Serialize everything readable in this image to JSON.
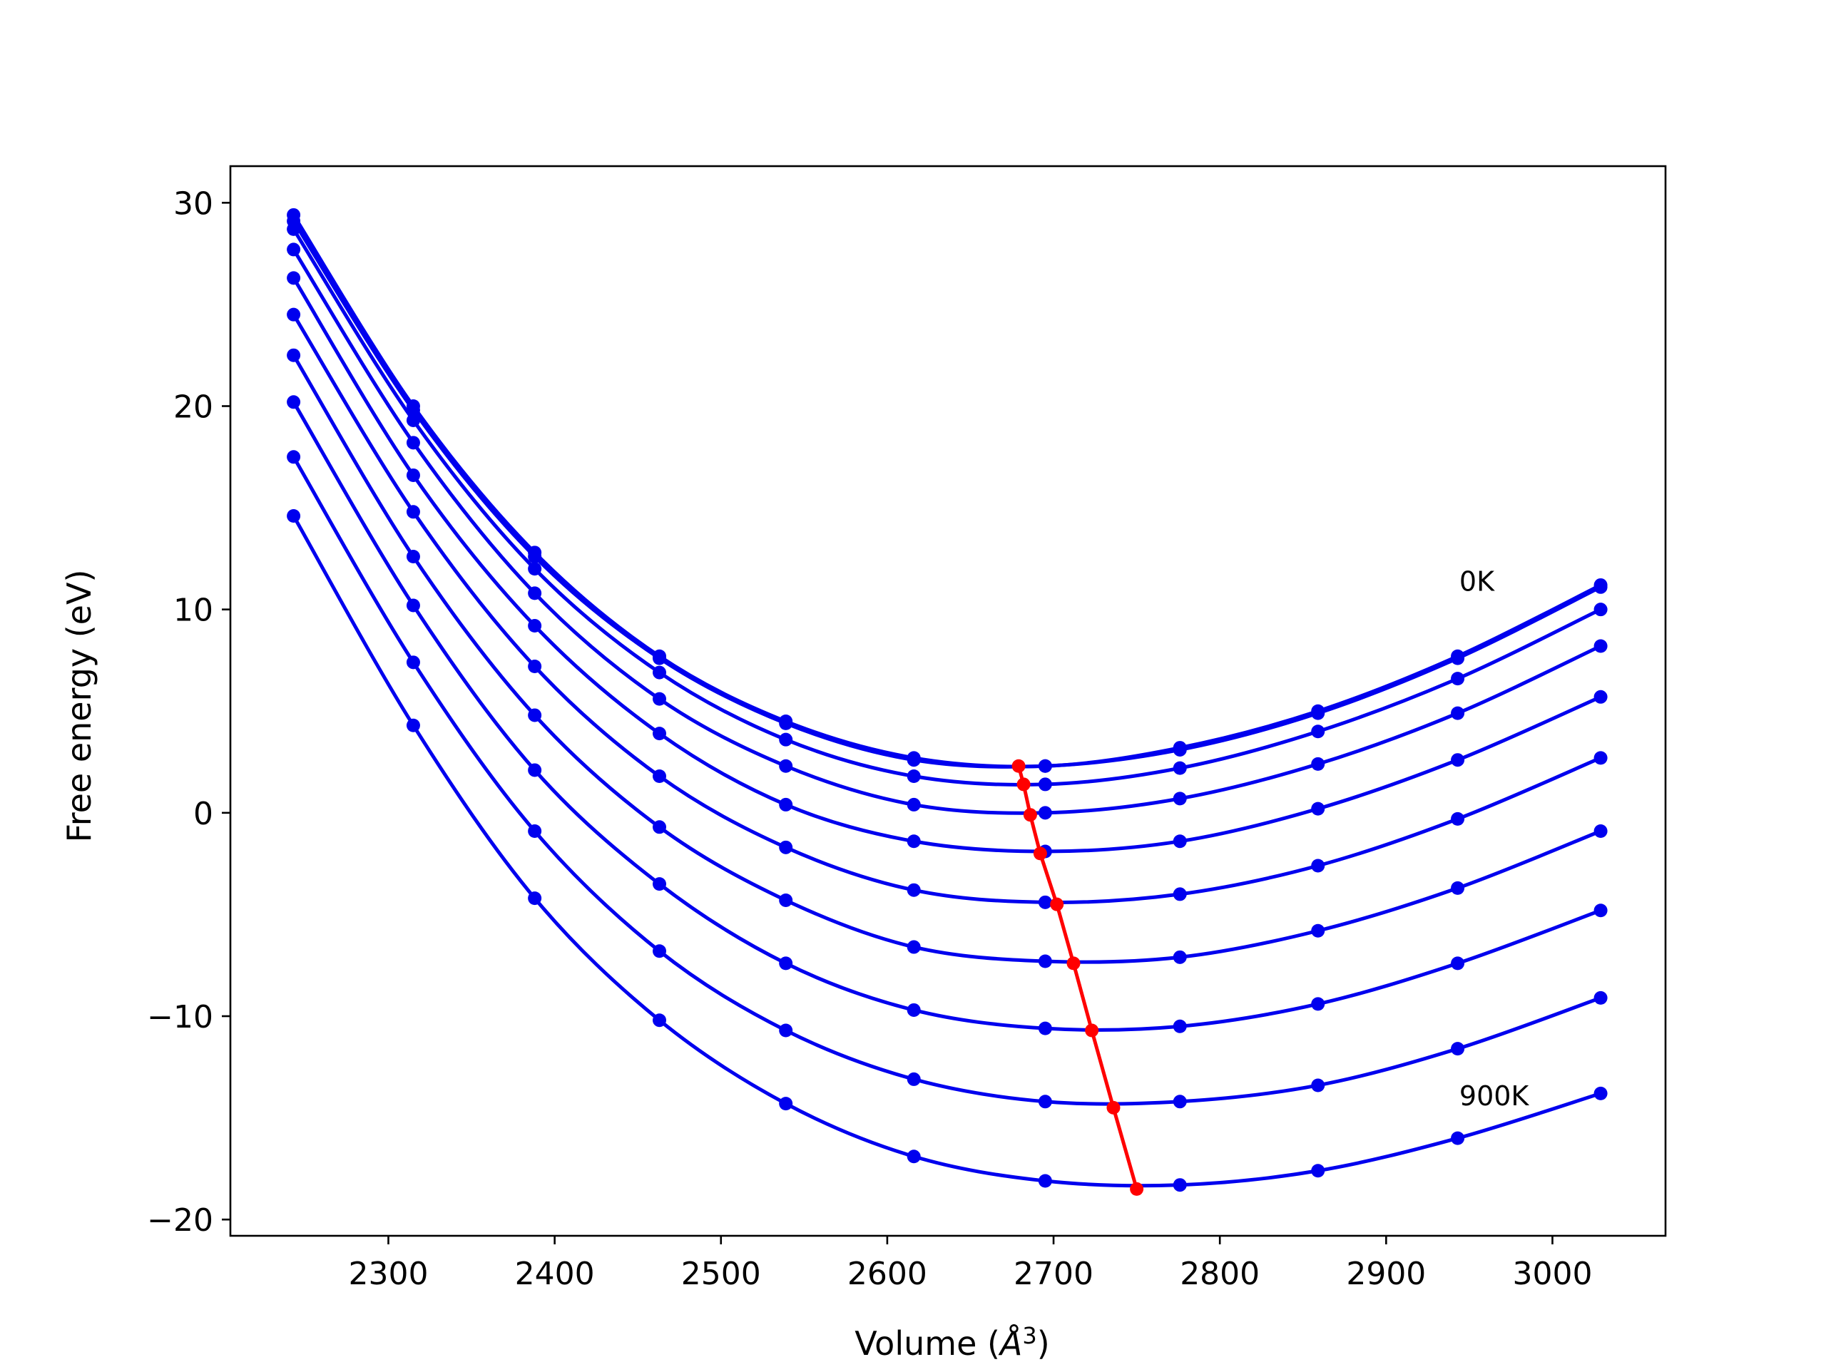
{
  "chart_data": {
    "type": "line",
    "title": "",
    "xlabel_main": "Volume (",
    "xlabel_unit": "Å",
    "xlabel_sup": "3",
    "xlabel_close": ")",
    "ylabel": "Free energy (eV)",
    "xlim": [
      2205,
      3068
    ],
    "ylim": [
      -20.8,
      31.8
    ],
    "xticks": [
      2300,
      2400,
      2500,
      2600,
      2700,
      2800,
      2900,
      3000
    ],
    "yticks": [
      -20,
      -10,
      0,
      10,
      20,
      30
    ],
    "xtick_labels": [
      "2300",
      "2400",
      "2500",
      "2600",
      "2700",
      "2800",
      "2900",
      "3000"
    ],
    "ytick_labels": [
      "−20",
      "−10",
      "0",
      "10",
      "20",
      "30"
    ],
    "annotations": [
      {
        "text": "0K",
        "x": 2944,
        "y": 11.4
      },
      {
        "text": "900K",
        "x": 2944,
        "y": -13.9
      }
    ],
    "x": [
      2243,
      2315,
      2388,
      2463,
      2539,
      2616,
      2695,
      2776,
      2859,
      2943,
      3029
    ],
    "series": [
      {
        "color": "#0000ee",
        "values": [
          29.4,
          20.0,
          12.8,
          7.7,
          4.5,
          2.7,
          2.3,
          3.2,
          5.0,
          7.7,
          11.2
        ]
      },
      {
        "color": "#0000ee",
        "values": [
          29.1,
          19.8,
          12.6,
          7.6,
          4.4,
          2.6,
          2.3,
          3.1,
          4.9,
          7.6,
          11.1
        ]
      },
      {
        "color": "#0000ee",
        "values": [
          28.7,
          19.3,
          12.0,
          6.9,
          3.6,
          1.8,
          1.4,
          2.2,
          4.0,
          6.6,
          10.0
        ]
      },
      {
        "color": "#0000ee",
        "values": [
          27.7,
          18.2,
          10.8,
          5.6,
          2.3,
          0.4,
          0.0,
          0.7,
          2.4,
          4.9,
          8.2
        ]
      },
      {
        "color": "#0000ee",
        "values": [
          26.3,
          16.6,
          9.2,
          3.9,
          0.4,
          -1.4,
          -1.9,
          -1.4,
          0.2,
          2.6,
          5.7
        ]
      },
      {
        "color": "#0000ee",
        "values": [
          24.5,
          14.8,
          7.2,
          1.8,
          -1.7,
          -3.8,
          -4.4,
          -4.0,
          -2.6,
          -0.3,
          2.7
        ]
      },
      {
        "color": "#0000ee",
        "values": [
          22.5,
          12.6,
          4.8,
          -0.7,
          -4.3,
          -6.6,
          -7.3,
          -7.1,
          -5.8,
          -3.7,
          -0.9
        ]
      },
      {
        "color": "#0000ee",
        "values": [
          20.2,
          10.2,
          2.1,
          -3.5,
          -7.4,
          -9.7,
          -10.6,
          -10.5,
          -9.4,
          -7.4,
          -4.8
        ]
      },
      {
        "color": "#0000ee",
        "values": [
          17.5,
          7.4,
          -0.9,
          -6.8,
          -10.7,
          -13.1,
          -14.2,
          -14.2,
          -13.4,
          -11.6,
          -9.1
        ]
      },
      {
        "color": "#0000ee",
        "values": [
          14.6,
          4.3,
          -4.2,
          -10.2,
          -14.3,
          -16.9,
          -18.1,
          -18.3,
          -17.6,
          -16.0,
          -13.8
        ]
      }
    ],
    "minima": {
      "color": "#ff0000",
      "x": [
        2679,
        2682,
        2686,
        2692,
        2702,
        2712,
        2723,
        2736,
        2750
      ],
      "y": [
        2.3,
        1.4,
        -0.1,
        -2.0,
        -4.5,
        -7.4,
        -10.7,
        -14.5,
        -18.5
      ]
    },
    "grid": false,
    "legend": "none"
  }
}
